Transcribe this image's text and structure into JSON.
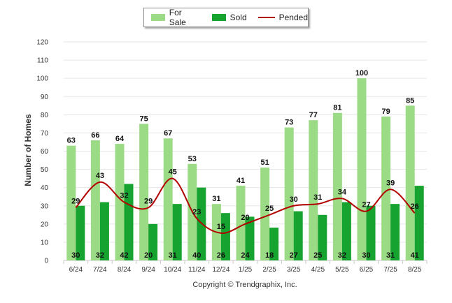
{
  "legend": {
    "for_sale": "For Sale",
    "sold": "Sold",
    "pended": "Pended"
  },
  "colors": {
    "for_sale": "#9cdb86",
    "sold": "#17a32f",
    "pended": "#b30000"
  },
  "footer": {
    "copyright": "Copyright © Trendgraphix, Inc."
  },
  "chart_data": {
    "type": "bar",
    "ylabel": "Number of Homes",
    "ylim": [
      0,
      120
    ],
    "yticks": [
      0,
      10,
      20,
      30,
      40,
      50,
      60,
      70,
      80,
      90,
      100,
      110,
      120
    ],
    "grid": true,
    "legend_position": "top-center",
    "categories": [
      "6/24",
      "7/24",
      "8/24",
      "9/24",
      "10/24",
      "11/24",
      "12/24",
      "1/25",
      "2/25",
      "3/25",
      "4/25",
      "5/25",
      "6/25",
      "7/25",
      "8/25"
    ],
    "series": [
      {
        "name": "For Sale",
        "type": "bar",
        "values": [
          63,
          66,
          64,
          75,
          67,
          53,
          31,
          41,
          51,
          73,
          77,
          81,
          100,
          79,
          85
        ]
      },
      {
        "name": "Sold",
        "type": "bar",
        "values": [
          30,
          32,
          42,
          20,
          31,
          40,
          26,
          24,
          18,
          27,
          25,
          32,
          30,
          31,
          41
        ]
      },
      {
        "name": "Pended",
        "type": "line",
        "values": [
          29,
          43,
          32,
          29,
          45,
          23,
          15,
          20,
          25,
          30,
          31,
          34,
          27,
          39,
          26
        ]
      }
    ]
  }
}
